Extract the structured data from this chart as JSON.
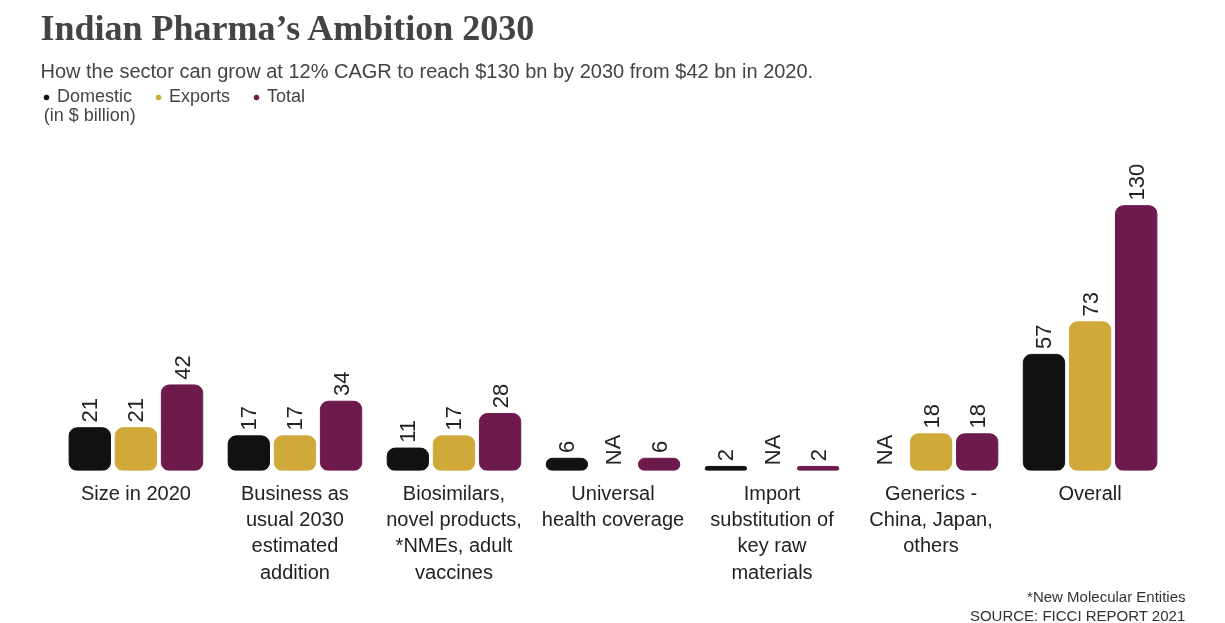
{
  "chart_data": {
    "type": "bar",
    "title": "Indian Pharma’s Ambition 2030",
    "subtitle": "How the sector can grow at 12% CAGR to reach $130 bn by 2030 from $42 bn in 2020.",
    "ylabel": "(in $ billion)",
    "categories": [
      "Size in 2020",
      "Business as usual 2030 estimated addition",
      "Biosimilars, novel products, *NMEs, adult vaccines",
      "Universal health coverage",
      "Import substitution of key raw materials",
      "Generics - China, Japan, others",
      "Overall"
    ],
    "series": [
      {
        "name": "Domestic",
        "color": "#111111",
        "values": [
          21,
          17,
          11,
          6,
          2,
          null,
          57
        ],
        "value_labels": [
          "21",
          "17",
          "11",
          "6",
          "2",
          "NA",
          "57"
        ]
      },
      {
        "name": "Exports",
        "color": "#cfa93a",
        "values": [
          21,
          17,
          17,
          null,
          null,
          18,
          73
        ],
        "value_labels": [
          "21",
          "17",
          "17",
          "NA",
          "NA",
          "18",
          "73"
        ]
      },
      {
        "name": "Total",
        "color": "#6e1a4c",
        "values": [
          42,
          34,
          28,
          6,
          2,
          18,
          130
        ],
        "value_labels": [
          "42",
          "34",
          "28",
          "6",
          "2",
          "18",
          "130"
        ]
      }
    ],
    "data_labels": true,
    "legend": "top left",
    "grid": false,
    "annotations": [
      "*New Molecular Entities",
      "SOURCE: FICCI REPORT 2021"
    ]
  }
}
